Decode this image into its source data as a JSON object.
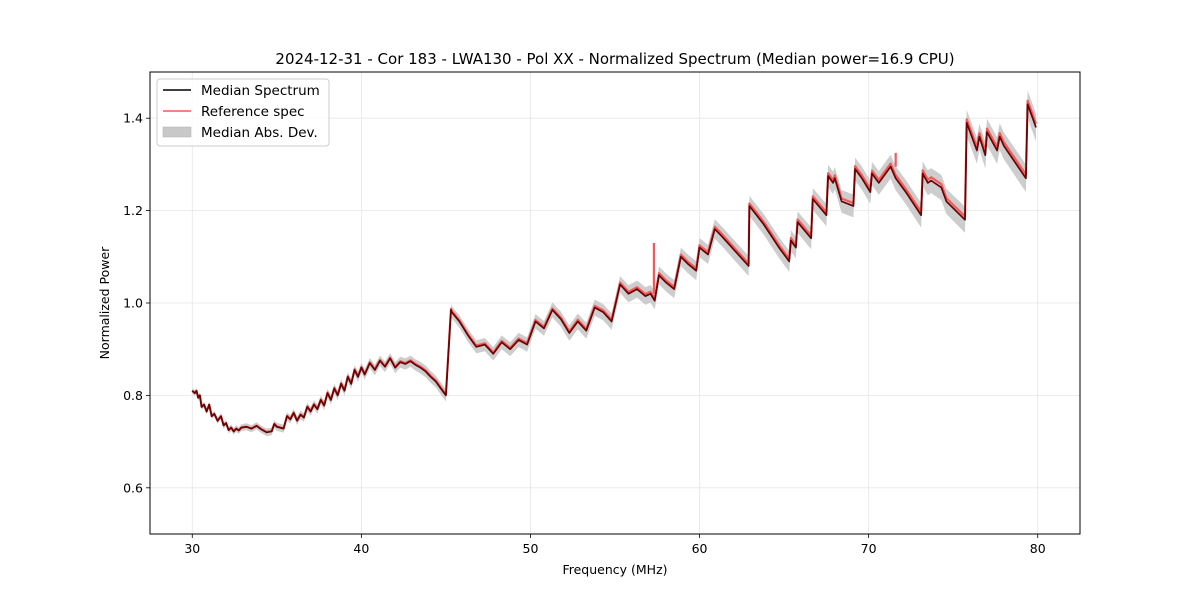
{
  "chart_data": {
    "type": "line",
    "title": "2024-12-31 - Cor 183 - LWA130 - Pol XX - Normalized Spectrum (Median power=16.9 CPU)",
    "xlabel": "Frequency (MHz)",
    "ylabel": "Normalized Power",
    "xlim": [
      27.5,
      82.5
    ],
    "ylim": [
      0.5,
      1.5
    ],
    "xticks": [
      30,
      40,
      50,
      60,
      70,
      80
    ],
    "xtick_labels": [
      "30",
      "40",
      "50",
      "60",
      "70",
      "80"
    ],
    "yticks": [
      0.6,
      0.8,
      1.0,
      1.2,
      1.4
    ],
    "ytick_labels": [
      "0.6",
      "0.8",
      "1.0",
      "1.2",
      "1.4"
    ],
    "grid": true,
    "legend_position": "top-left",
    "legend": [
      {
        "label": "Median Spectrum",
        "kind": "line",
        "color": "#000000"
      },
      {
        "label": "Reference spec",
        "kind": "line",
        "color": "#f05a5a"
      },
      {
        "label": "Median Abs. Dev.",
        "kind": "patch",
        "color": "#c8c8c8"
      }
    ],
    "series": [
      {
        "name": "Median Spectrum",
        "color": "#000000",
        "x": [
          30.0,
          30.15,
          30.25,
          30.35,
          30.45,
          30.55,
          30.7,
          30.85,
          31.0,
          31.15,
          31.3,
          31.5,
          31.7,
          31.85,
          32.0,
          32.15,
          32.3,
          32.45,
          32.6,
          32.75,
          32.9,
          33.2,
          33.5,
          33.8,
          34.1,
          34.4,
          34.7,
          34.85,
          35.0,
          35.2,
          35.4,
          35.6,
          35.8,
          36.0,
          36.2,
          36.4,
          36.6,
          36.8,
          37.0,
          37.2,
          37.4,
          37.6,
          37.8,
          38.0,
          38.2,
          38.4,
          38.6,
          38.8,
          39.0,
          39.2,
          39.4,
          39.6,
          39.8,
          40.0,
          40.2,
          40.5,
          40.8,
          41.1,
          41.4,
          41.7,
          42.0,
          42.3,
          42.6,
          42.9,
          43.2,
          43.5,
          43.8,
          44.1,
          44.4,
          44.7,
          45.0,
          45.3,
          45.35,
          45.8,
          46.3,
          46.8,
          47.3,
          47.8,
          48.3,
          48.8,
          49.3,
          49.8,
          50.3,
          50.8,
          51.3,
          51.8,
          52.3,
          52.8,
          53.3,
          53.8,
          54.3,
          54.8,
          55.3,
          55.8,
          56.3,
          56.8,
          57.1,
          57.35,
          57.6,
          58.0,
          58.5,
          58.9,
          59.3,
          59.8,
          60.0,
          60.5,
          60.9,
          61.3,
          62.9,
          62.95,
          63.8,
          64.7,
          65.3,
          65.4,
          65.7,
          65.8,
          66.6,
          66.7,
          67.5,
          67.6,
          67.9,
          68.0,
          68.4,
          69.1,
          69.2,
          69.6,
          70.1,
          70.2,
          70.6,
          71.3,
          71.6,
          72.2,
          73.1,
          73.2,
          73.5,
          73.7,
          74.3,
          74.6,
          75.7,
          75.8,
          76.4,
          76.55,
          76.9,
          77.0,
          77.6,
          77.75,
          78.0,
          79.3,
          79.4,
          79.9
        ],
        "y": [
          0.81,
          0.805,
          0.81,
          0.795,
          0.8,
          0.775,
          0.78,
          0.765,
          0.78,
          0.755,
          0.76,
          0.745,
          0.755,
          0.735,
          0.74,
          0.725,
          0.73,
          0.722,
          0.728,
          0.724,
          0.73,
          0.732,
          0.728,
          0.734,
          0.726,
          0.72,
          0.722,
          0.738,
          0.732,
          0.73,
          0.728,
          0.755,
          0.748,
          0.762,
          0.745,
          0.758,
          0.752,
          0.775,
          0.765,
          0.78,
          0.77,
          0.79,
          0.778,
          0.805,
          0.79,
          0.815,
          0.8,
          0.825,
          0.81,
          0.84,
          0.825,
          0.855,
          0.84,
          0.86,
          0.845,
          0.87,
          0.855,
          0.875,
          0.862,
          0.88,
          0.86,
          0.872,
          0.868,
          0.874,
          0.866,
          0.86,
          0.852,
          0.84,
          0.83,
          0.815,
          0.8,
          0.985,
          0.98,
          0.96,
          0.93,
          0.905,
          0.91,
          0.89,
          0.915,
          0.9,
          0.92,
          0.91,
          0.96,
          0.945,
          0.985,
          0.965,
          0.935,
          0.96,
          0.94,
          0.99,
          0.98,
          0.96,
          1.04,
          1.02,
          1.03,
          1.015,
          1.02,
          1.005,
          1.06,
          1.045,
          1.03,
          1.1,
          1.085,
          1.07,
          1.12,
          1.105,
          1.16,
          1.145,
          1.08,
          1.21,
          1.17,
          1.12,
          1.09,
          1.135,
          1.12,
          1.175,
          1.14,
          1.225,
          1.19,
          1.275,
          1.26,
          1.27,
          1.22,
          1.21,
          1.29,
          1.27,
          1.24,
          1.28,
          1.26,
          1.295,
          1.27,
          1.24,
          1.19,
          1.28,
          1.26,
          1.265,
          1.25,
          1.22,
          1.18,
          1.39,
          1.33,
          1.36,
          1.32,
          1.37,
          1.33,
          1.36,
          1.34,
          1.27,
          1.43,
          1.38
        ]
      },
      {
        "name": "Reference spec",
        "color": "#f05a5a",
        "spikes": [
          {
            "x": 57.3,
            "y": 1.13
          },
          {
            "x": 71.6,
            "y": 1.325
          }
        ]
      }
    ],
    "band": {
      "name": "Median Abs. Dev.",
      "color": "#c8c8c8",
      "half_width_start": 0.006,
      "half_width_end": 0.03
    }
  }
}
